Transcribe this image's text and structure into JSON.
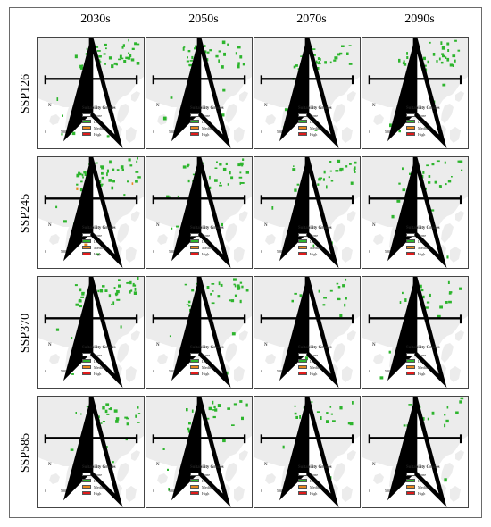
{
  "columns": [
    "2030s",
    "2050s",
    "2070s",
    "2090s"
  ],
  "rows": [
    "SSP126",
    "SSP245",
    "SSP370",
    "SSP585"
  ],
  "legend": {
    "title": "Suitability Grades",
    "items": [
      {
        "label": "None",
        "color": "#ffffff"
      },
      {
        "label": "Low",
        "color": "#2db52d"
      },
      {
        "label": "Medium",
        "color": "#e8871e"
      },
      {
        "label": "High",
        "color": "#e01b1b"
      }
    ]
  },
  "north_label": "N",
  "scale": {
    "zero": "0",
    "label": "500 km"
  },
  "colors": {
    "land": "#ececec",
    "sea": "#ffffff",
    "low": "#2db52d",
    "medium": "#e8871e",
    "high": "#e01b1b"
  }
}
